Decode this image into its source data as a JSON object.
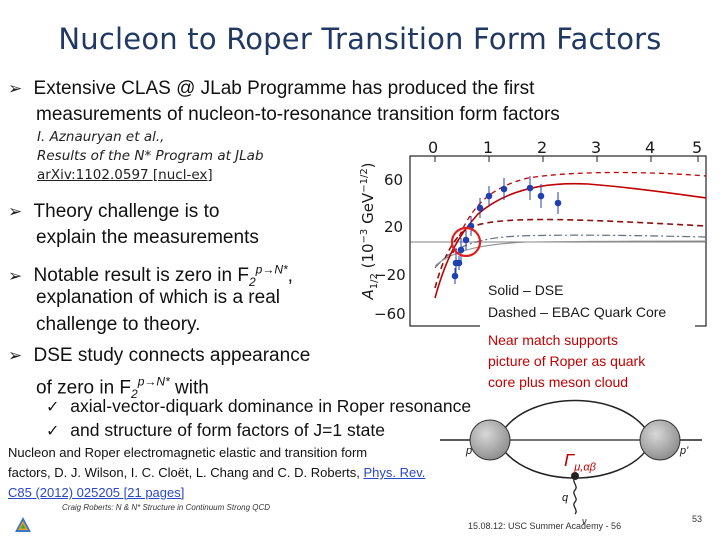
{
  "title": "Nucleon to Roper Transition Form Factors",
  "bullet1": {
    "line1": "Extensive CLAS @ JLab Programme has produced the first",
    "line2": "measurements of nucleon-to-resonance transition form factors"
  },
  "reference": {
    "line1": "I. Aznauryan et al.,",
    "line2": "Results of the N* Program at JLab",
    "line3": "arXiv:1102.0597 [nucl-ex]"
  },
  "bullet2": {
    "line1": "Theory challenge is to",
    "line2": "explain the measurements"
  },
  "bullet3": {
    "prefix": "Notable result is zero in F",
    "sub": "2",
    "sup": "p→N*",
    "suffix": ",",
    "line2": "explanation of which is a real",
    "line3": "challenge to theory."
  },
  "bullet4": {
    "line1": "DSE study connects appearance",
    "prefix": "of zero in F",
    "sub": "2",
    "sup": "p→N*",
    "suffix": " with"
  },
  "checks": [
    "axial-vector-diquark dominance in Roper resonance",
    "and structure of form factors of J=1 state"
  ],
  "plot": {
    "ylabel_main": "A",
    "ylabel_sub": "1/2",
    "ylabel_units": "(10",
    "ylabel_exp": "−3",
    "ylabel_gev": "GeV",
    "ylabel_gev_exp": "−1/2",
    "ylabel_close": ")",
    "xticks": [
      "0",
      "1",
      "2",
      "3",
      "4",
      "5"
    ],
    "yticks": [
      "60",
      "20",
      "−20",
      "−60"
    ]
  },
  "legend": {
    "solid": "Solid – DSE",
    "dashed": "Dashed – EBAC Quark Core"
  },
  "note": {
    "line1": "Near match supports",
    "line2": "picture of Roper as quark",
    "line3": "core plus meson cloud"
  },
  "footer": {
    "line1": "Nucleon and Roper electromagnetic elastic and transition form",
    "line2_prefix": "factors, D. J. Wilson, I. C. Cloët, L. Chang and C. D. Roberts, ",
    "line2_link": "Phys. Rev.",
    "line3_link": "C85 (2012) 025205 [21 pages]"
  },
  "credit": "Craig Roberts: N & N* Structure in Continuum Strong QCD",
  "diagram": {
    "gamma": "Γ",
    "gamma_sub": "μ,αβ",
    "p": "p",
    "pprime": "p'",
    "q": "q",
    "nu": "ν"
  },
  "event": "15.08.12: USC Summer Academy - 56",
  "page_number": "53",
  "colors": {
    "title": "#1f3864",
    "red": "#c00000",
    "link": "#2b48c8",
    "dse_curve": "#c00000",
    "circle": "#e02020",
    "data": "#2040b0"
  }
}
